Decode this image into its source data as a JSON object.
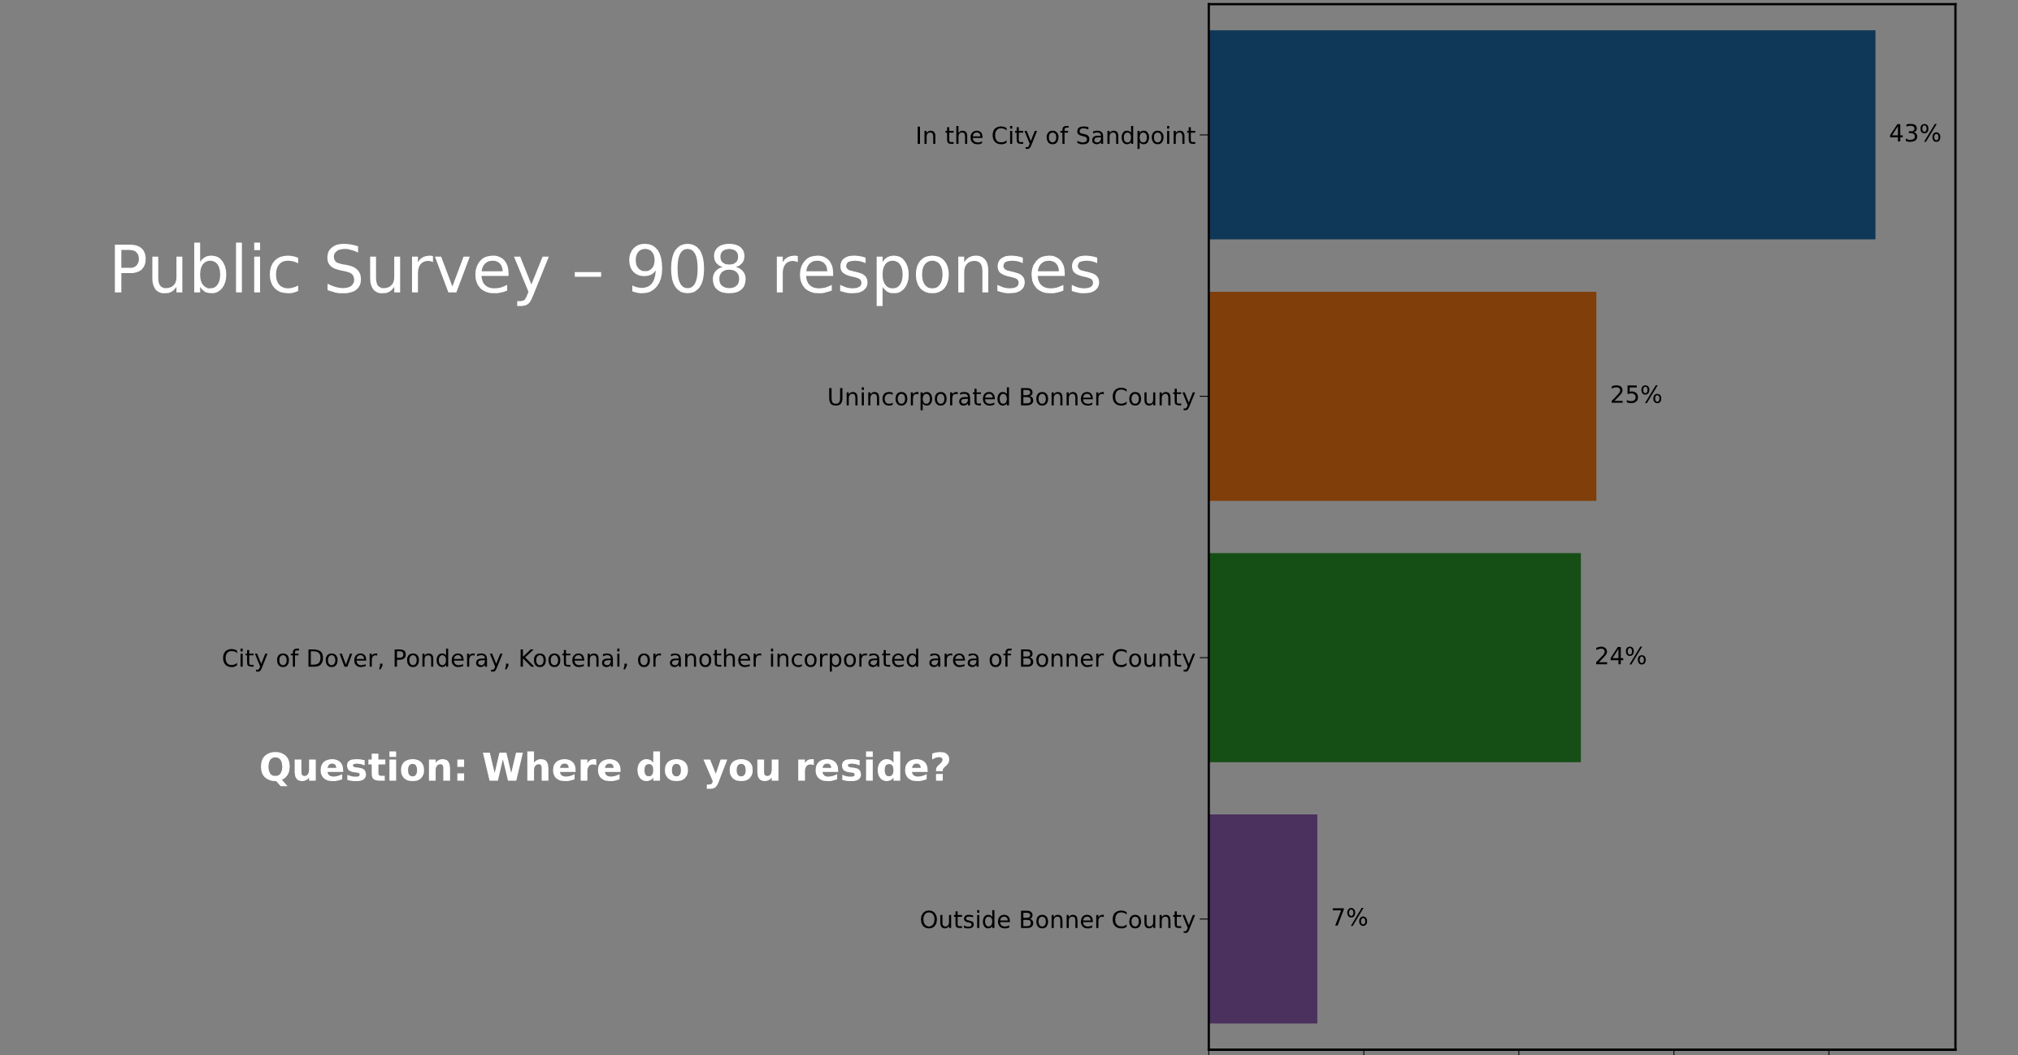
{
  "chart_data": {
    "type": "bar",
    "orientation": "horizontal",
    "title": "Public Survey – 908 responses",
    "subtitle": "Question: Where do you reside?",
    "categories": [
      "In the City of Sandpoint",
      "Unincorporated Bonner County",
      "City of Dover, Ponderay, Kootenai, or another incorporated area of Bonner County",
      "Outside Bonner County"
    ],
    "values": [
      43,
      25,
      24,
      7
    ],
    "colors": [
      "#0f3757",
      "#803f0a",
      "#154f16",
      "#4a315e"
    ],
    "value_labels": [
      "43%",
      "25%",
      "24%",
      "7%"
    ],
    "tick_labels": "y",
    "grid": false
  }
}
